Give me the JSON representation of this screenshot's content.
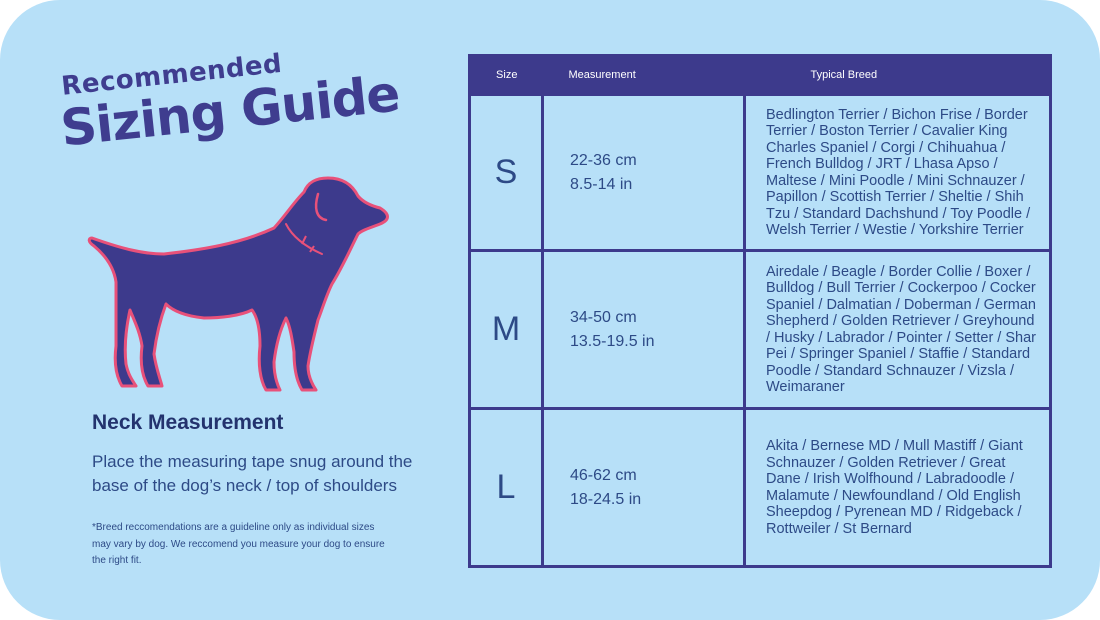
{
  "header": {
    "title_small": "Recommended",
    "title_big": "Sizing Guide"
  },
  "neck": {
    "title": "Neck Measurement",
    "description": "Place the measuring tape snug around the base of the dog’s neck / top of shoulders"
  },
  "footnote": "*Breed reccomendations are a guideline only as individual sizes may vary by dog. We reccomend you measure your dog to ensure the right fit.",
  "illustration": {
    "icon": "dog-silhouette-icon",
    "fill_color": "#3d3a8c",
    "outline_color": "#e8517a"
  },
  "table": {
    "headers": {
      "size": "Size",
      "measurement": "Measurement",
      "breed": "Typical Breed"
    },
    "rows": [
      {
        "size": "S",
        "cm": "22-36 cm",
        "inch": "8.5-14 in",
        "breeds": "Bedlington Terrier / Bichon Frise / Border Terrier / Boston Terrier / Cavalier King Charles Spaniel / Corgi / Chihuahua / French Bulldog /  JRT / Lhasa Apso / Maltese / Mini Poodle / Mini Schnauzer / Papillon / Scottish Terrier / Sheltie / Shih Tzu / Standard Dachshund / Toy Poodle / Welsh Terrier / Westie / Yorkshire Terrier"
      },
      {
        "size": "M",
        "cm": "34-50 cm",
        "inch": "13.5-19.5 in",
        "breeds": "Airedale / Beagle / Border Collie / Boxer / Bulldog / Bull Terrier / Cockerpoo / Cocker Spaniel / Dalmatian / Doberman / German Shepherd / Golden Retriever / Greyhound / Husky / Labrador / Pointer / Setter / Shar Pei / Springer Spaniel / Staffie / Standard Poodle / Standard Schnauzer / Vizsla / Weimaraner"
      },
      {
        "size": "L",
        "cm": "46-62 cm",
        "inch": "18-24.5 in",
        "breeds": "Akita / Bernese MD / Mull Mastiff / Giant Schnauzer / Golden Retriever / Great Dane / Irish Wolfhound / Labradoodle / Malamute / Newfoundland / Old English Sheepdog / Pyrenean MD / Ridgeback / Rottweiler / St Bernard"
      }
    ]
  }
}
